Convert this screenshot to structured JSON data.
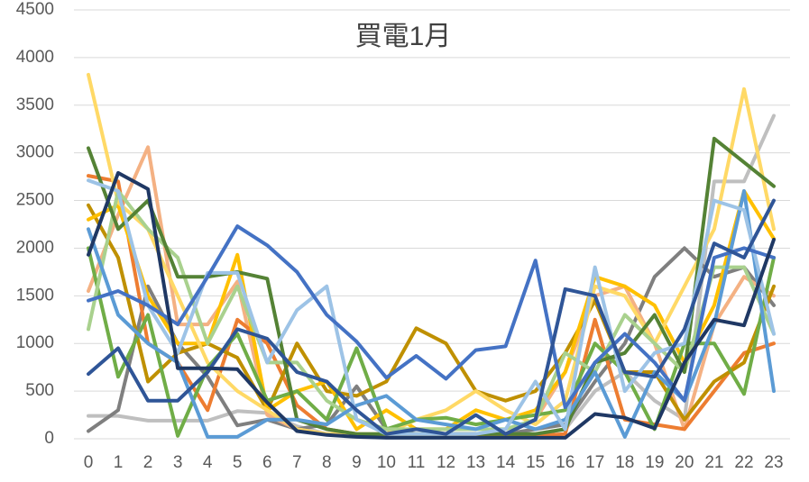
{
  "chart_data": {
    "type": "line",
    "title": "買電1月",
    "categories": [
      "0",
      "1",
      "2",
      "3",
      "4",
      "5",
      "6",
      "7",
      "8",
      "9",
      "10",
      "11",
      "12",
      "13",
      "14",
      "15",
      "16",
      "17",
      "18",
      "19",
      "20",
      "21",
      "22",
      "23"
    ],
    "ylim": [
      0,
      4500
    ],
    "yticks": [
      0,
      500,
      1000,
      1500,
      2000,
      2500,
      3000,
      3500,
      4000,
      4500
    ],
    "grid": true,
    "series": [
      {
        "color": "#bfbfbf",
        "values": [
          240,
          240,
          190,
          190,
          190,
          290,
          270,
          130,
          50,
          50,
          50,
          50,
          50,
          50,
          50,
          50,
          100,
          500,
          700,
          400,
          200,
          2700,
          2700,
          3390
        ]
      },
      {
        "color": "#7f7f7f",
        "values": [
          80,
          300,
          1600,
          1000,
          650,
          140,
          200,
          100,
          150,
          550,
          100,
          50,
          50,
          50,
          50,
          100,
          150,
          600,
          1000,
          1700,
          2000,
          1700,
          1800,
          1400
        ]
      },
      {
        "color": "#f4b183",
        "values": [
          1550,
          2350,
          3060,
          1200,
          1200,
          1650,
          250,
          100,
          50,
          30,
          30,
          30,
          50,
          50,
          50,
          200,
          700,
          1500,
          1600,
          1000,
          100,
          1200,
          1700,
          1500
        ]
      },
      {
        "color": "#ed7d31",
        "values": [
          2760,
          2700,
          1000,
          800,
          300,
          1250,
          1000,
          350,
          100,
          50,
          30,
          30,
          30,
          30,
          30,
          30,
          50,
          1250,
          200,
          150,
          100,
          500,
          900,
          1000
        ]
      },
      {
        "color": "#bf9000",
        "values": [
          2450,
          1900,
          600,
          900,
          1000,
          850,
          300,
          1000,
          500,
          450,
          600,
          1160,
          1000,
          500,
          400,
          500,
          900,
          1450,
          700,
          700,
          200,
          600,
          800,
          1600
        ]
      },
      {
        "color": "#ffc000",
        "values": [
          2300,
          2450,
          1500,
          1000,
          1000,
          1930,
          300,
          500,
          600,
          100,
          300,
          100,
          100,
          300,
          200,
          300,
          700,
          1700,
          1600,
          1400,
          800,
          1400,
          2600,
          2100
        ]
      },
      {
        "color": "#ffd966",
        "values": [
          3820,
          2480,
          2200,
          1500,
          800,
          500,
          300,
          100,
          50,
          50,
          50,
          200,
          300,
          500,
          300,
          150,
          400,
          1600,
          1500,
          1000,
          1600,
          2200,
          3670,
          2200
        ]
      },
      {
        "color": "#70ad47",
        "values": [
          2000,
          650,
          1300,
          30,
          750,
          1100,
          400,
          500,
          200,
          950,
          100,
          200,
          220,
          150,
          200,
          250,
          300,
          1000,
          700,
          100,
          1000,
          1000,
          470,
          1900
        ]
      },
      {
        "color": "#a9d18e",
        "values": [
          1150,
          2600,
          2200,
          1900,
          1000,
          1600,
          800,
          800,
          400,
          200,
          100,
          100,
          100,
          100,
          100,
          200,
          900,
          700,
          1300,
          1000,
          700,
          1800,
          1800,
          1100
        ]
      },
      {
        "color": "#548235",
        "values": [
          3050,
          2200,
          2500,
          1700,
          1700,
          1750,
          1680,
          200,
          100,
          50,
          50,
          50,
          50,
          50,
          50,
          50,
          100,
          800,
          900,
          1300,
          700,
          3150,
          2900,
          2650
        ]
      },
      {
        "color": "#5b9bd5",
        "values": [
          2200,
          1300,
          1000,
          800,
          20,
          20,
          200,
          200,
          150,
          350,
          450,
          200,
          150,
          100,
          200,
          100,
          200,
          700,
          20,
          700,
          400,
          1200,
          2600,
          500
        ]
      },
      {
        "color": "#9dc3e6",
        "values": [
          2710,
          2600,
          1400,
          900,
          1740,
          1740,
          800,
          1350,
          1600,
          200,
          50,
          50,
          50,
          50,
          100,
          600,
          100,
          1800,
          500,
          900,
          1000,
          2500,
          2400,
          1100
        ]
      },
      {
        "color": "#4472c4",
        "values": [
          1450,
          1550,
          1400,
          1200,
          1700,
          2230,
          2030,
          1750,
          1300,
          1020,
          640,
          870,
          630,
          930,
          970,
          1870,
          330,
          800,
          1100,
          800,
          400,
          1900,
          2000,
          1900
        ]
      },
      {
        "color": "#2f5597",
        "values": [
          680,
          950,
          400,
          400,
          700,
          1150,
          1050,
          700,
          600,
          300,
          50,
          100,
          50,
          250,
          50,
          200,
          1570,
          1500,
          700,
          650,
          1150,
          2050,
          1900,
          2500
        ]
      },
      {
        "color": "#1f3864",
        "values": [
          1930,
          2790,
          2620,
          740,
          740,
          730,
          380,
          80,
          40,
          20,
          10,
          10,
          10,
          10,
          10,
          10,
          10,
          260,
          220,
          110,
          800,
          1250,
          1190,
          2090
        ]
      }
    ]
  }
}
